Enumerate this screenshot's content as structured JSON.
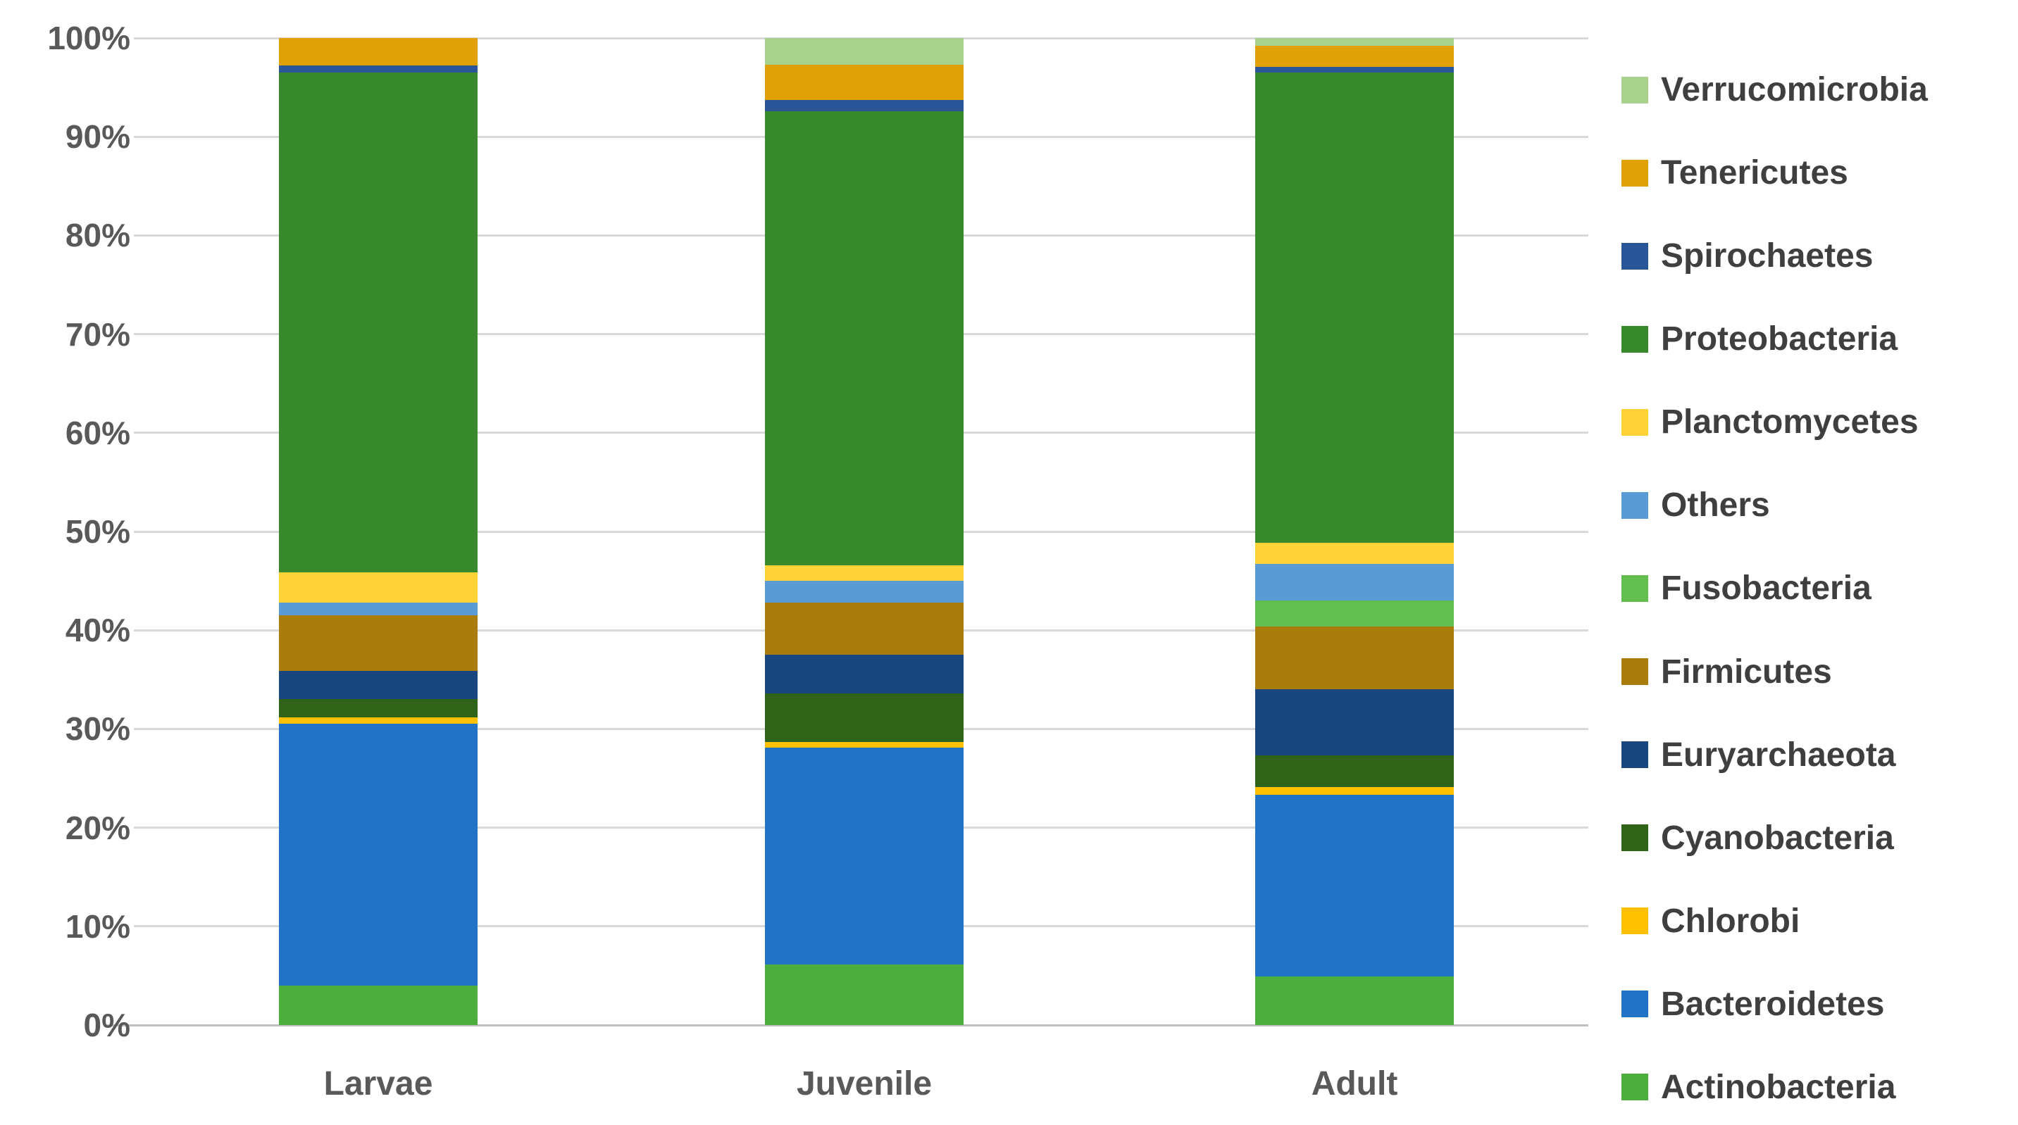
{
  "figure": {
    "background_color": "#FFFFFF",
    "tick_text_color": "#595959",
    "grid_color": "#D9D9D9",
    "axis_line_color": "#BFBFBF",
    "legend_text_color": "#3F3F3F"
  },
  "chart_data": {
    "type": "bar",
    "subtype": "percent-stacked-column",
    "title": "",
    "xlabel": "",
    "ylabel": "",
    "grid": true,
    "ylim": [
      0,
      100
    ],
    "yticks": [
      "0%",
      "10%",
      "20%",
      "30%",
      "40%",
      "50%",
      "60%",
      "70%",
      "80%",
      "90%",
      "100%"
    ],
    "categories": [
      "Larvae",
      "Juvenile",
      "Adult"
    ],
    "legend_position": "right",
    "legend_order_top_to_bottom": [
      "Verrucomicrobia",
      "Tenericutes",
      "Spirochaetes",
      "Proteobacteria",
      "Planctomycetes",
      "Others",
      "Fusobacteria",
      "Firmicutes",
      "Euryarchaeota",
      "Cyanobacteria",
      "Chlorobi",
      "Bacteroidetes",
      "Actinobacteria"
    ],
    "series": [
      {
        "name": "Actinobacteria",
        "color": "#4CAE3C",
        "values": [
          4.0,
          6.1,
          4.9
        ]
      },
      {
        "name": "Bacteroidetes",
        "color": "#2173C5",
        "values": [
          26.5,
          22.0,
          18.4
        ]
      },
      {
        "name": "Chlorobi",
        "color": "#FFC000",
        "values": [
          0.7,
          0.6,
          0.8
        ]
      },
      {
        "name": "Cyanobacteria",
        "color": "#2F6418",
        "values": [
          1.8,
          4.9,
          3.2
        ]
      },
      {
        "name": "Euryarchaeota",
        "color": "#1A4680",
        "values": [
          2.9,
          3.9,
          6.7
        ]
      },
      {
        "name": "Firmicutes",
        "color": "#A87D0B",
        "values": [
          5.6,
          5.3,
          6.4
        ]
      },
      {
        "name": "Fusobacteria",
        "color": "#62BE4F",
        "values": [
          0.0,
          0.0,
          2.6
        ]
      },
      {
        "name": "Others",
        "color": "#5B9BD5",
        "values": [
          1.3,
          2.2,
          3.7
        ]
      },
      {
        "name": "Planctomycetes",
        "color": "#FFD335",
        "values": [
          3.1,
          1.6,
          2.2
        ]
      },
      {
        "name": "Proteobacteria",
        "color": "#38892C",
        "values": [
          50.6,
          46.0,
          47.6
        ]
      },
      {
        "name": "Spirochaetes",
        "color": "#2A5699",
        "values": [
          0.7,
          1.1,
          0.6
        ]
      },
      {
        "name": "Tenericutes",
        "color": "#E0A008",
        "values": [
          2.8,
          3.6,
          2.1
        ]
      },
      {
        "name": "Verrucomicrobia",
        "color": "#A9D18E",
        "values": [
          0.0,
          2.7,
          0.8
        ]
      }
    ]
  },
  "layout_note": ""
}
